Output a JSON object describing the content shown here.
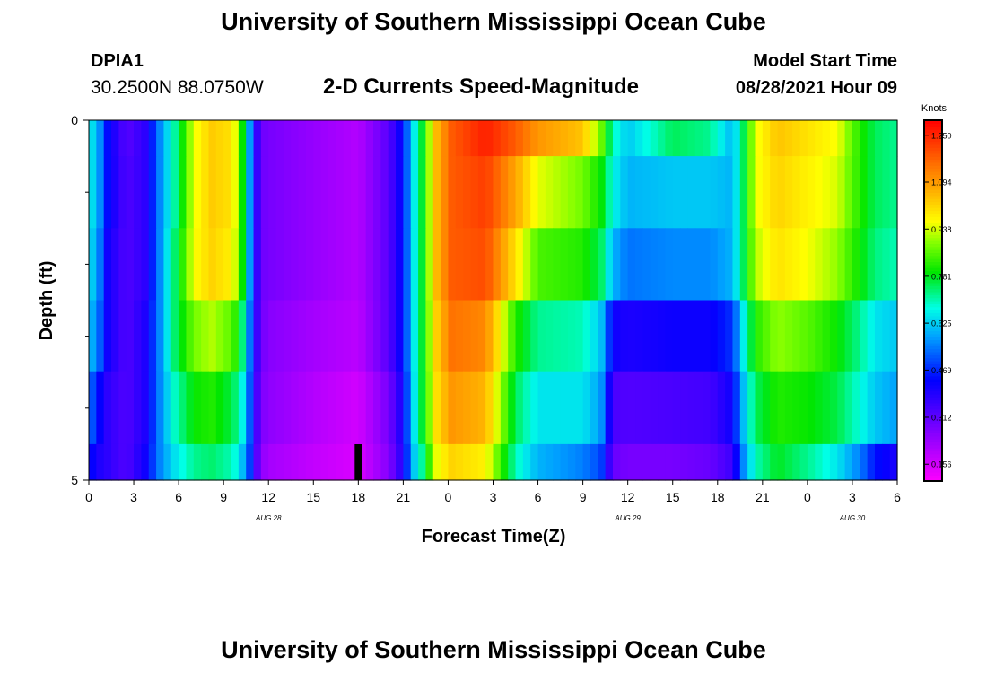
{
  "page": {
    "title_top": "University of Southern Mississippi Ocean Cube",
    "title_bottom": "University of Southern Mississippi Ocean Cube",
    "station_id": "DPIA1",
    "station_coords": "30.2500N  88.0750W",
    "chart_title": "2-D Currents Speed-Magnitude",
    "model_start_label": "Model Start Time",
    "model_start_value": "08/28/2021 Hour 09"
  },
  "chart_data": {
    "type": "heatmap",
    "title": "2-D Currents Speed-Magnitude",
    "xlabel": "Forecast Time(Z)",
    "ylabel": "Depth (ft)",
    "xlim": [
      0,
      54
    ],
    "ylim": [
      0,
      5
    ],
    "y_tick_labels": [
      {
        "value": 0,
        "label": "0"
      },
      {
        "value": 5,
        "label": "5"
      }
    ],
    "y_minor_ticks": [
      1,
      2,
      3,
      4
    ],
    "x_tick_labels": [
      {
        "value": 0,
        "label": "0"
      },
      {
        "value": 3,
        "label": "3"
      },
      {
        "value": 6,
        "label": "6"
      },
      {
        "value": 9,
        "label": "9"
      },
      {
        "value": 12,
        "label": "12"
      },
      {
        "value": 15,
        "label": "15"
      },
      {
        "value": 18,
        "label": "18"
      },
      {
        "value": 21,
        "label": "21"
      },
      {
        "value": 24,
        "label": "0"
      },
      {
        "value": 27,
        "label": "3"
      },
      {
        "value": 30,
        "label": "6"
      },
      {
        "value": 33,
        "label": "9"
      },
      {
        "value": 36,
        "label": "12"
      },
      {
        "value": 39,
        "label": "15"
      },
      {
        "value": 42,
        "label": "18"
      },
      {
        "value": 45,
        "label": "21"
      },
      {
        "value": 48,
        "label": "0"
      },
      {
        "value": 51,
        "label": "3"
      },
      {
        "value": 54,
        "label": "6"
      }
    ],
    "date_labels": [
      {
        "value": 12,
        "label": "AUG  28"
      },
      {
        "value": 36,
        "label": "AUG  29"
      },
      {
        "value": 51,
        "label": "AUG  30"
      }
    ],
    "current_time_marker": 18,
    "colorbar": {
      "title": "Knots",
      "min": 0.1,
      "max": 1.3,
      "tick_values": [
        0.156,
        0.312,
        0.469,
        0.625,
        0.781,
        0.938,
        1.094,
        1.25
      ],
      "tick_labels": [
        "0.156",
        "0.312",
        "0.469",
        "0.625",
        "0.781",
        "0.938",
        "1.094",
        "1.250"
      ]
    },
    "depth_layers": [
      "0-0.5",
      "0.5-1.5",
      "1.5-2.5",
      "2.5-3.5",
      "3.5-4.5",
      "4.5-5"
    ],
    "key_times": [
      0,
      0.6,
      1.2,
      2.5,
      3.8,
      4.7,
      5.8,
      7,
      8.2,
      9.6,
      10.2,
      10.8,
      11.4,
      12,
      15,
      18,
      20,
      21,
      21.6,
      22.3,
      23.2,
      24.2,
      26.5,
      28.5,
      30,
      33,
      34.2,
      35,
      36,
      39,
      41.5,
      43,
      43.7,
      44.5,
      46,
      48,
      50,
      51.5,
      52.5,
      54
    ],
    "key_values": [
      [
        0.67,
        0.6,
        0.45,
        0.32,
        0.38,
        0.55,
        0.72,
        0.95,
        1.03,
        1.0,
        0.82,
        0.55,
        0.3,
        0.28,
        0.24,
        0.2,
        0.32,
        0.45,
        0.63,
        0.78,
        1.05,
        1.18,
        1.26,
        1.18,
        1.1,
        1.04,
        0.88,
        0.7,
        0.62,
        0.75,
        0.72,
        0.6,
        0.74,
        0.95,
        1.04,
        1.0,
        0.96,
        0.82,
        0.75,
        0.72
      ],
      [
        0.67,
        0.6,
        0.45,
        0.33,
        0.38,
        0.55,
        0.72,
        0.95,
        1.03,
        1.0,
        0.82,
        0.55,
        0.3,
        0.28,
        0.24,
        0.2,
        0.32,
        0.45,
        0.63,
        0.78,
        1.05,
        1.18,
        1.22,
        1.08,
        0.95,
        0.88,
        0.8,
        0.67,
        0.6,
        0.62,
        0.62,
        0.6,
        0.74,
        0.95,
        1.02,
        0.98,
        0.94,
        0.82,
        0.75,
        0.72
      ],
      [
        0.65,
        0.58,
        0.42,
        0.33,
        0.38,
        0.55,
        0.75,
        0.96,
        1.02,
        0.98,
        0.82,
        0.55,
        0.3,
        0.28,
        0.24,
        0.2,
        0.32,
        0.45,
        0.63,
        0.78,
        1.05,
        1.18,
        1.2,
        1.0,
        0.85,
        0.82,
        0.75,
        0.6,
        0.54,
        0.56,
        0.56,
        0.6,
        0.74,
        0.92,
        1.0,
        0.96,
        0.9,
        0.8,
        0.73,
        0.7
      ],
      [
        0.62,
        0.55,
        0.42,
        0.33,
        0.4,
        0.55,
        0.75,
        0.88,
        0.92,
        0.86,
        0.75,
        0.52,
        0.3,
        0.26,
        0.22,
        0.19,
        0.32,
        0.45,
        0.63,
        0.78,
        1.02,
        1.15,
        1.12,
        0.82,
        0.72,
        0.7,
        0.62,
        0.42,
        0.4,
        0.42,
        0.42,
        0.48,
        0.65,
        0.82,
        0.9,
        0.86,
        0.8,
        0.72,
        0.65,
        0.62
      ],
      [
        0.55,
        0.45,
        0.38,
        0.33,
        0.4,
        0.55,
        0.7,
        0.8,
        0.82,
        0.76,
        0.68,
        0.5,
        0.28,
        0.25,
        0.2,
        0.16,
        0.28,
        0.42,
        0.62,
        0.78,
        1.0,
        1.1,
        1.06,
        0.75,
        0.65,
        0.65,
        0.58,
        0.34,
        0.33,
        0.34,
        0.35,
        0.42,
        0.6,
        0.75,
        0.82,
        0.8,
        0.76,
        0.68,
        0.62,
        0.58
      ],
      [
        0.45,
        0.4,
        0.38,
        0.33,
        0.42,
        0.55,
        0.65,
        0.72,
        0.74,
        0.7,
        0.62,
        0.48,
        0.26,
        0.22,
        0.18,
        0.15,
        0.26,
        0.4,
        0.6,
        0.72,
        0.95,
        1.02,
        0.98,
        0.7,
        0.6,
        0.55,
        0.5,
        0.3,
        0.28,
        0.28,
        0.3,
        0.36,
        0.55,
        0.7,
        0.78,
        0.72,
        0.65,
        0.55,
        0.45,
        0.4
      ]
    ]
  }
}
